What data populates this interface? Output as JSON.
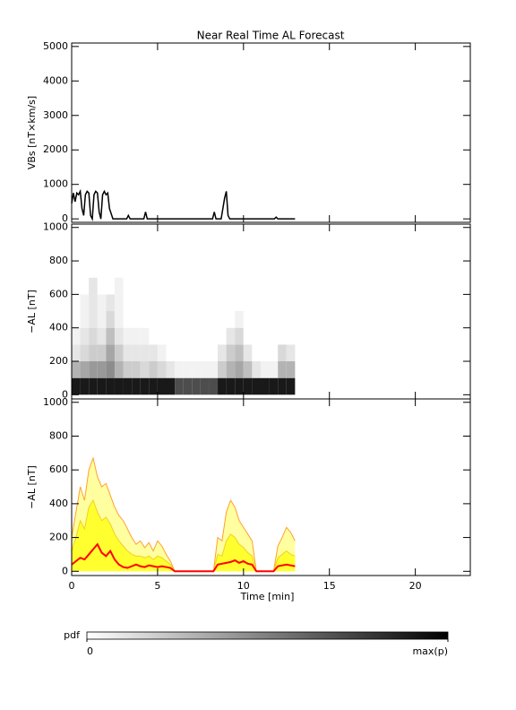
{
  "title": "Near Real Time AL Forecast",
  "chart_data": [
    {
      "type": "line",
      "ylabel": "VBs [nT×km/s]",
      "color": "#000000",
      "xlim": [
        0,
        23.2
      ],
      "xticks": [
        0,
        5,
        10,
        15,
        20
      ],
      "ylim": [
        -100,
        5100
      ],
      "yticks": [
        0,
        1000,
        2000,
        3000,
        4000,
        5000
      ],
      "x": [
        0,
        0.1,
        0.2,
        0.3,
        0.4,
        0.5,
        0.6,
        0.7,
        0.8,
        0.9,
        1.0,
        1.1,
        1.2,
        1.3,
        1.4,
        1.5,
        1.6,
        1.7,
        1.8,
        1.9,
        2.0,
        2.1,
        2.2,
        2.4,
        3.2,
        3.3,
        3.4,
        4.2,
        4.3,
        4.4,
        8.2,
        8.3,
        8.4,
        8.7,
        8.8,
        8.9,
        9.0,
        9.1,
        9.2,
        9.3,
        11.8,
        11.9,
        12.0,
        13.0
      ],
      "values": [
        450,
        750,
        500,
        750,
        700,
        800,
        300,
        100,
        700,
        800,
        750,
        100,
        0,
        700,
        800,
        750,
        200,
        0,
        700,
        800,
        700,
        750,
        300,
        0,
        0,
        100,
        0,
        0,
        200,
        0,
        0,
        200,
        0,
        0,
        300,
        600,
        800,
        100,
        0,
        0,
        0,
        50,
        0,
        0
      ]
    },
    {
      "type": "heatmap",
      "ylabel": "−AL [nT]",
      "xlim": [
        0,
        23.2
      ],
      "xticks": [
        0,
        5,
        10,
        15,
        20
      ],
      "ylim": [
        -25,
        1020
      ],
      "yticks": [
        0,
        200,
        400,
        600,
        800,
        1000
      ],
      "x_edges": [
        0,
        0.5,
        1,
        1.5,
        2,
        2.5,
        3,
        3.5,
        4,
        4.5,
        5,
        5.5,
        6,
        6.5,
        7,
        7.5,
        8,
        8.5,
        9,
        9.5,
        10,
        10.5,
        11,
        11.5,
        12,
        12.5,
        13
      ],
      "y_edges": [
        0,
        100,
        200,
        300,
        400,
        500,
        600,
        700
      ],
      "z": [
        [
          0.9,
          0.9,
          0.9,
          0.9,
          0.9,
          0.9,
          0.9,
          0.9,
          0.9,
          0.9,
          0.9,
          0.9,
          0.7,
          0.7,
          0.7,
          0.7,
          0.7,
          0.9,
          0.9,
          0.9,
          0.9,
          0.9,
          0.9,
          0.9,
          0.9,
          0.9
        ],
        [
          0.3,
          0.35,
          0.4,
          0.4,
          0.45,
          0.3,
          0.2,
          0.2,
          0.15,
          0.2,
          0.15,
          0.1,
          0.05,
          0.05,
          0.05,
          0.05,
          0.05,
          0.2,
          0.3,
          0.35,
          0.25,
          0.1,
          0.05,
          0.05,
          0.3,
          0.3
        ],
        [
          0.1,
          0.15,
          0.2,
          0.2,
          0.35,
          0.2,
          0.1,
          0.1,
          0.1,
          0.1,
          0.05,
          0,
          0,
          0,
          0,
          0,
          0,
          0.1,
          0.2,
          0.25,
          0.1,
          0,
          0,
          0,
          0.15,
          0.1
        ],
        [
          0.05,
          0.1,
          0.15,
          0.1,
          0.25,
          0.1,
          0.05,
          0.05,
          0.05,
          0,
          0,
          0,
          0,
          0,
          0,
          0,
          0,
          0,
          0.1,
          0.15,
          0,
          0,
          0,
          0,
          0,
          0
        ],
        [
          0,
          0.05,
          0.1,
          0.05,
          0.15,
          0.05,
          0,
          0,
          0,
          0,
          0,
          0,
          0,
          0,
          0,
          0,
          0,
          0,
          0,
          0.05,
          0,
          0,
          0,
          0,
          0,
          0
        ],
        [
          0,
          0.05,
          0.1,
          0.05,
          0.1,
          0.05,
          0,
          0,
          0,
          0,
          0,
          0,
          0,
          0,
          0,
          0,
          0,
          0,
          0,
          0,
          0,
          0,
          0,
          0,
          0,
          0
        ],
        [
          0,
          0,
          0.1,
          0,
          0,
          0.05,
          0,
          0,
          0,
          0,
          0,
          0,
          0,
          0,
          0,
          0,
          0,
          0,
          0,
          0,
          0,
          0,
          0,
          0,
          0,
          0
        ]
      ],
      "colorbar": {
        "label": "pdf",
        "ticks": [
          0,
          {
            "value": 1,
            "label": "max(p)"
          }
        ]
      }
    },
    {
      "type": "area",
      "ylabel": "−AL [nT]",
      "xlabel": "Time [min]",
      "xlim": [
        0,
        23.2
      ],
      "xticks": [
        0,
        5,
        10,
        15,
        20
      ],
      "ylim": [
        -25,
        1020
      ],
      "yticks": [
        0,
        200,
        400,
        600,
        800,
        1000
      ],
      "x": [
        0,
        0.25,
        0.5,
        0.75,
        1,
        1.25,
        1.5,
        1.75,
        2,
        2.25,
        2.5,
        2.75,
        3,
        3.25,
        3.5,
        3.75,
        4,
        4.25,
        4.5,
        4.75,
        5,
        5.25,
        5.5,
        5.75,
        6,
        6.25,
        6.5,
        6.75,
        7,
        7.25,
        7.5,
        7.75,
        8,
        8.25,
        8.5,
        8.75,
        9,
        9.25,
        9.5,
        9.75,
        10,
        10.25,
        10.5,
        10.75,
        11,
        11.25,
        11.5,
        11.75,
        12,
        12.25,
        12.5,
        12.75,
        13
      ],
      "series": [
        {
          "color": "#ffa030",
          "fill": "#ffffa0",
          "values": [
            200,
            350,
            500,
            420,
            600,
            670,
            560,
            500,
            520,
            450,
            380,
            330,
            300,
            250,
            200,
            160,
            180,
            140,
            170,
            120,
            180,
            150,
            100,
            60,
            0,
            0,
            0,
            0,
            0,
            0,
            0,
            0,
            0,
            0,
            200,
            180,
            350,
            420,
            380,
            300,
            260,
            220,
            180,
            0,
            0,
            0,
            0,
            0,
            150,
            200,
            260,
            230,
            180
          ]
        },
        {
          "color": "#f0d020",
          "fill": "#ffff30",
          "values": [
            120,
            200,
            300,
            250,
            380,
            420,
            350,
            300,
            320,
            280,
            220,
            180,
            150,
            120,
            100,
            90,
            90,
            80,
            90,
            70,
            90,
            80,
            60,
            40,
            0,
            0,
            0,
            0,
            0,
            0,
            0,
            0,
            0,
            0,
            100,
            90,
            180,
            220,
            200,
            160,
            140,
            110,
            90,
            0,
            0,
            0,
            0,
            0,
            80,
            100,
            120,
            100,
            90
          ]
        },
        {
          "color": "#ff0000",
          "values": [
            40,
            60,
            80,
            70,
            100,
            130,
            160,
            110,
            90,
            120,
            70,
            40,
            25,
            20,
            30,
            40,
            30,
            25,
            35,
            30,
            25,
            30,
            25,
            20,
            0,
            0,
            0,
            0,
            0,
            0,
            0,
            0,
            0,
            0,
            40,
            45,
            50,
            55,
            65,
            50,
            60,
            45,
            40,
            0,
            0,
            0,
            0,
            0,
            30,
            35,
            40,
            35,
            30
          ]
        }
      ]
    }
  ]
}
